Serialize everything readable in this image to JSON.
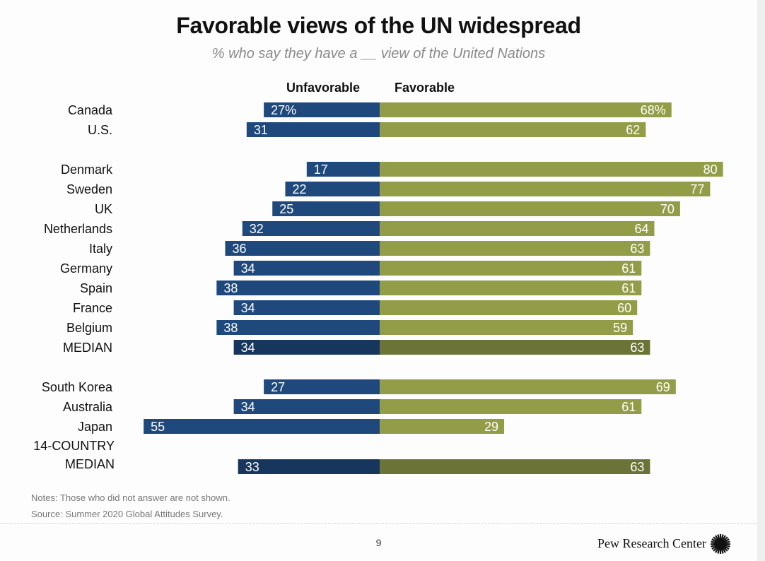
{
  "header": {
    "title": "Favorable views of the UN widespread",
    "subtitle": "% who say they have a __ view of the United Nations"
  },
  "chart_data": {
    "type": "bar",
    "orientation": "horizontal-diverging",
    "title": "Favorable views of the UN widespread",
    "subtitle": "% who say they have a __ view of the United Nations",
    "xlabel": "",
    "ylabel": "",
    "xlim": [
      -55,
      80
    ],
    "grid": false,
    "legend": [
      "Unfavorable",
      "Favorable"
    ],
    "legend_placement": "top",
    "colors": {
      "unfavorable": "#1f497d",
      "favorable": "#939d48",
      "unfavorable_median": "#17365d",
      "favorable_median": "#6b7436"
    },
    "groups": [
      {
        "rows": [
          {
            "label": "Canada",
            "unfavorable": 27,
            "favorable": 68,
            "unfav_label": "27%",
            "fav_label": "68%",
            "median": false
          },
          {
            "label": "U.S.",
            "unfavorable": 31,
            "favorable": 62,
            "unfav_label": "31",
            "fav_label": "62",
            "median": false
          }
        ]
      },
      {
        "rows": [
          {
            "label": "Denmark",
            "unfavorable": 17,
            "favorable": 80,
            "unfav_label": "17",
            "fav_label": "80",
            "median": false
          },
          {
            "label": "Sweden",
            "unfavorable": 22,
            "favorable": 77,
            "unfav_label": "22",
            "fav_label": "77",
            "median": false
          },
          {
            "label": "UK",
            "unfavorable": 25,
            "favorable": 70,
            "unfav_label": "25",
            "fav_label": "70",
            "median": false
          },
          {
            "label": "Netherlands",
            "unfavorable": 32,
            "favorable": 64,
            "unfav_label": "32",
            "fav_label": "64",
            "median": false
          },
          {
            "label": "Italy",
            "unfavorable": 36,
            "favorable": 63,
            "unfav_label": "36",
            "fav_label": "63",
            "median": false
          },
          {
            "label": "Germany",
            "unfavorable": 34,
            "favorable": 61,
            "unfav_label": "34",
            "fav_label": "61",
            "median": false
          },
          {
            "label": "Spain",
            "unfavorable": 38,
            "favorable": 61,
            "unfav_label": "38",
            "fav_label": "61",
            "median": false
          },
          {
            "label": "France",
            "unfavorable": 34,
            "favorable": 60,
            "unfav_label": "34",
            "fav_label": "60",
            "median": false
          },
          {
            "label": "Belgium",
            "unfavorable": 38,
            "favorable": 59,
            "unfav_label": "38",
            "fav_label": "59",
            "median": false
          },
          {
            "label": "MEDIAN",
            "unfavorable": 34,
            "favorable": 63,
            "unfav_label": "34",
            "fav_label": "63",
            "median": true
          }
        ]
      },
      {
        "rows": [
          {
            "label": "South Korea",
            "unfavorable": 27,
            "favorable": 69,
            "unfav_label": "27",
            "fav_label": "69",
            "median": false
          },
          {
            "label": "Australia",
            "unfavorable": 34,
            "favorable": 61,
            "unfav_label": "34",
            "fav_label": "61",
            "median": false
          },
          {
            "label": "Japan",
            "unfavorable": 55,
            "favorable": 29,
            "unfav_label": "55",
            "fav_label": "29",
            "median": false
          }
        ]
      },
      {
        "rows": [
          {
            "label": "14-COUNTRY MEDIAN",
            "label_lines": [
              "14-COUNTRY",
              "MEDIAN"
            ],
            "unfavorable": 33,
            "favorable": 63,
            "unfav_label": "33",
            "fav_label": "63",
            "median": true
          }
        ]
      }
    ]
  },
  "legend": {
    "unfavorable": "Unfavorable",
    "favorable": "Favorable"
  },
  "footer": {
    "notes": "Notes: Those who did not answer are not shown.",
    "source": "Source: Summer 2020 Global Attitudes Survey.",
    "page_number": "9",
    "brand": "Pew Research Center",
    "logo_icon": "pew-sunburst-icon"
  }
}
